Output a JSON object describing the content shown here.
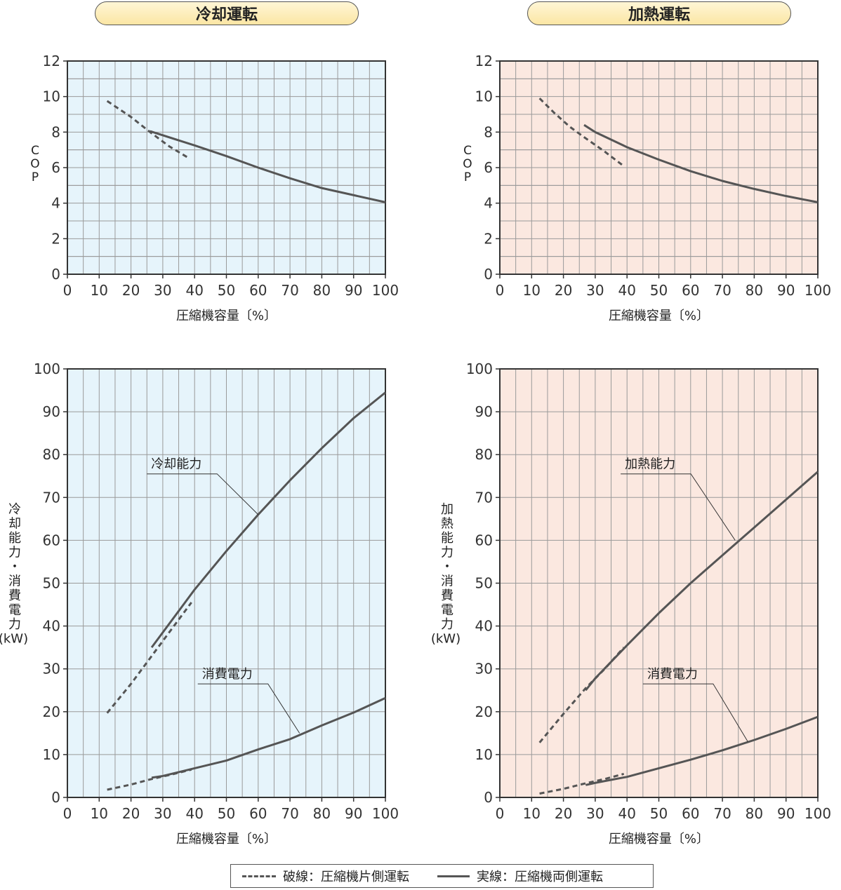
{
  "titles": {
    "cooling": "冷却運転",
    "heating": "加熱運転"
  },
  "colors": {
    "cool_bg": "#e6f4fb",
    "heat_bg": "#fbe8e0",
    "grid": "#9a9a9a",
    "frame": "#333333",
    "line": "#555555"
  },
  "legend": {
    "dashed": "破線：圧縮機片側運転",
    "solid": "実線：圧縮機両側運転"
  },
  "chart_data": [
    {
      "id": "cool_cop",
      "type": "line",
      "panel": "cooling",
      "xlabel": "圧縮機容量〔%〕",
      "ylabel": "COP",
      "xlim": [
        0,
        100
      ],
      "ylim": [
        0,
        12
      ],
      "xticks": [
        0,
        10,
        20,
        30,
        40,
        50,
        60,
        70,
        80,
        90,
        100
      ],
      "yticks": [
        0,
        2,
        4,
        6,
        8,
        10,
        12
      ],
      "grid": true,
      "series": [
        {
          "style": "dashed",
          "x": [
            12.5,
            20,
            26,
            32,
            38.5
          ],
          "y": [
            9.75,
            8.85,
            8.0,
            7.2,
            6.5
          ]
        },
        {
          "style": "solid",
          "x": [
            26,
            40,
            50,
            60,
            70,
            80,
            90,
            100
          ],
          "y": [
            8.05,
            7.25,
            6.65,
            6.0,
            5.4,
            4.85,
            4.45,
            4.05
          ]
        }
      ],
      "annotations": []
    },
    {
      "id": "heat_cop",
      "type": "line",
      "panel": "heating",
      "xlabel": "圧縮機容量〔%〕",
      "ylabel": "COP",
      "xlim": [
        0,
        100
      ],
      "ylim": [
        0,
        12
      ],
      "xticks": [
        0,
        10,
        20,
        30,
        40,
        50,
        60,
        70,
        80,
        90,
        100
      ],
      "yticks": [
        0,
        2,
        4,
        6,
        8,
        10,
        12
      ],
      "grid": true,
      "series": [
        {
          "style": "dashed",
          "x": [
            12.5,
            17,
            22,
            27,
            33,
            38.5
          ],
          "y": [
            9.9,
            9.1,
            8.3,
            7.65,
            6.9,
            6.15
          ]
        },
        {
          "style": "solid",
          "x": [
            26.5,
            30,
            40,
            50,
            60,
            70,
            80,
            90,
            100
          ],
          "y": [
            8.4,
            8.0,
            7.15,
            6.45,
            5.8,
            5.25,
            4.8,
            4.4,
            4.05
          ]
        }
      ],
      "annotations": []
    },
    {
      "id": "cool_power",
      "type": "line",
      "panel": "cooling",
      "xlabel": "圧縮機容量〔%〕",
      "ylabel": "冷却能力・消費電力（kW）",
      "xlim": [
        0,
        100
      ],
      "ylim": [
        0,
        100
      ],
      "xticks": [
        0,
        10,
        20,
        30,
        40,
        50,
        60,
        70,
        80,
        90,
        100
      ],
      "yticks": [
        0,
        10,
        20,
        30,
        40,
        50,
        60,
        70,
        80,
        90,
        100
      ],
      "grid": true,
      "series": [
        {
          "style": "dashed",
          "x": [
            12.5,
            20,
            27,
            33,
            39
          ],
          "y": [
            19.7,
            26.5,
            33.5,
            39.5,
            45.5
          ]
        },
        {
          "style": "solid",
          "x": [
            26.5,
            30,
            40,
            50,
            60,
            70,
            80,
            90,
            100
          ],
          "y": [
            35,
            38.5,
            48.5,
            57.5,
            66,
            74,
            81.5,
            88.5,
            94.5
          ]
        },
        {
          "style": "dashed",
          "x": [
            12.5,
            20,
            26,
            33,
            39
          ],
          "y": [
            1.8,
            3.0,
            4.2,
            5.4,
            6.5
          ]
        },
        {
          "style": "solid",
          "x": [
            26.5,
            30,
            35,
            40,
            45,
            50,
            60,
            70,
            80,
            90,
            100
          ],
          "y": [
            4.6,
            5.0,
            5.9,
            6.8,
            7.7,
            8.6,
            11.2,
            13.6,
            16.8,
            19.8,
            23.2
          ]
        }
      ],
      "annotations": [
        {
          "text": "冷却能力",
          "tx": 25,
          "ty": 75.5,
          "x": 60,
          "y": 66
        },
        {
          "text": "消費電力",
          "tx": 41,
          "ty": 26.5,
          "x": 73,
          "y": 15
        }
      ]
    },
    {
      "id": "heat_power",
      "type": "line",
      "panel": "heating",
      "xlabel": "圧縮機容量〔%〕",
      "ylabel": "加熱能力・消費電力（kW）",
      "xlim": [
        0,
        100
      ],
      "ylim": [
        0,
        100
      ],
      "xticks": [
        0,
        10,
        20,
        30,
        40,
        50,
        60,
        70,
        80,
        90,
        100
      ],
      "yticks": [
        0,
        10,
        20,
        30,
        40,
        50,
        60,
        70,
        80,
        90,
        100
      ],
      "grid": true,
      "series": [
        {
          "style": "dashed",
          "x": [
            12.5,
            20,
            27,
            33,
            39
          ],
          "y": [
            12.8,
            19.5,
            25.5,
            30,
            35
          ]
        },
        {
          "style": "solid",
          "x": [
            27,
            30,
            40,
            50,
            60,
            70,
            80,
            90,
            100
          ],
          "y": [
            25,
            27.8,
            35.5,
            43,
            50,
            56.5,
            63,
            69.5,
            76
          ]
        },
        {
          "style": "dashed",
          "x": [
            12.5,
            20,
            27,
            33,
            39
          ],
          "y": [
            0.9,
            2.0,
            3.3,
            4.3,
            5.5
          ]
        },
        {
          "style": "solid",
          "x": [
            27,
            30,
            40,
            50,
            60,
            70,
            80,
            90,
            100
          ],
          "y": [
            2.9,
            3.4,
            4.8,
            6.8,
            8.8,
            11.0,
            13.4,
            16.0,
            18.8
          ]
        }
      ],
      "annotations": [
        {
          "text": "加熱能力",
          "tx": 38,
          "ty": 75.5,
          "x": 74,
          "y": 60
        },
        {
          "text": "消費電力",
          "tx": 45,
          "ty": 26.5,
          "x": 78,
          "y": 13
        }
      ]
    }
  ]
}
